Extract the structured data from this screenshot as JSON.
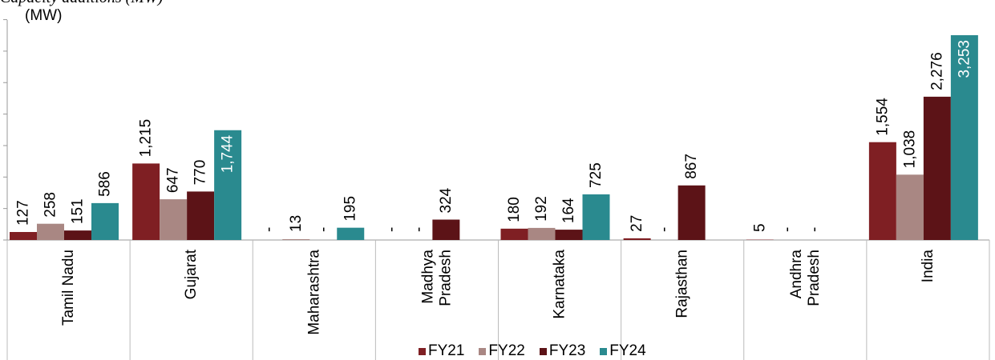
{
  "header": {
    "caption": "Capacity additions (MW)",
    "unit": "(MW)"
  },
  "chart_data": {
    "type": "bar",
    "categories": [
      "Tamil Nadu",
      "Gujarat",
      "Maharashtra",
      "Madhya Pradesh",
      "Karnataka",
      "Rajasthan",
      "Andhra Pradesh",
      "India"
    ],
    "category_lines": [
      [
        "Tamil Nadu"
      ],
      [
        "Gujarat"
      ],
      [
        "Maharashtra"
      ],
      [
        "Madhya",
        "Pradesh"
      ],
      [
        "Karnataka"
      ],
      [
        "Rajasthan"
      ],
      [
        "Andhra",
        "Pradesh"
      ],
      [
        "India"
      ]
    ],
    "series": [
      {
        "name": "FY21",
        "color": "#7f1f23",
        "values": [
          127,
          1215,
          0,
          0,
          180,
          27,
          5,
          1554
        ],
        "labels": [
          "127",
          "1,215",
          "-",
          "-",
          "180",
          "27",
          "5",
          "1,554"
        ]
      },
      {
        "name": "FY22",
        "color": "#a98783",
        "values": [
          258,
          647,
          13,
          0,
          192,
          0,
          0,
          1038
        ],
        "labels": [
          "258",
          "647",
          "13",
          "-",
          "192",
          "-",
          "-",
          "1,038"
        ]
      },
      {
        "name": "FY23",
        "color": "#5c1317",
        "values": [
          151,
          770,
          0,
          324,
          164,
          867,
          0,
          2276
        ],
        "labels": [
          "151",
          "770",
          "-",
          "324",
          "164",
          "867",
          "-",
          "2,276"
        ]
      },
      {
        "name": "FY24",
        "color": "#2a8a8f",
        "values": [
          586,
          1744,
          195,
          0,
          725,
          0,
          0,
          3253
        ],
        "labels": [
          "586",
          "1,744",
          "195",
          "",
          "725",
          "",
          "",
          "3,253"
        ]
      }
    ],
    "ylim": [
      0,
      3500
    ],
    "ytick_step": 500,
    "legend": "bottom",
    "grid": false
  }
}
